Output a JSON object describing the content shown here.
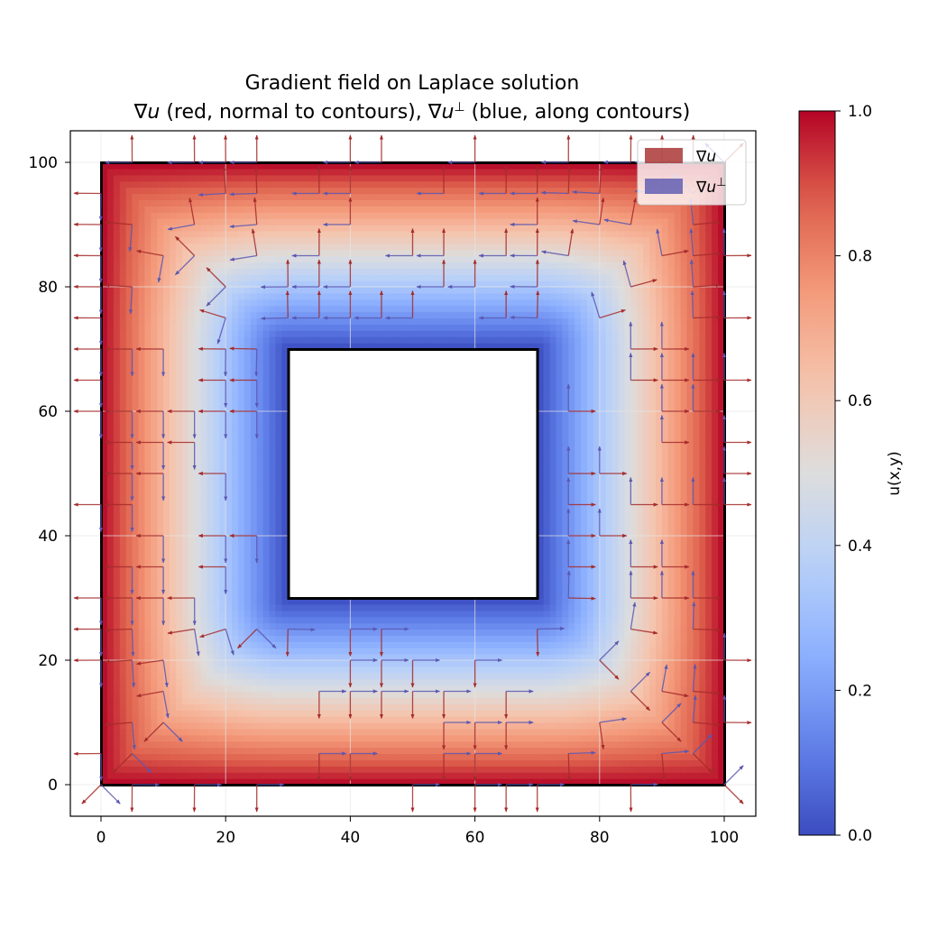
{
  "chart_data": {
    "type": "quiver",
    "title_line1": "Gradient field on Laplace solution",
    "title_line2": "∇u (red, normal to contours), ∇u⊥ (blue, along contours)",
    "xlim": [
      -5,
      105
    ],
    "ylim": [
      -5,
      105
    ],
    "x_ticks": [
      0,
      20,
      40,
      60,
      80,
      100
    ],
    "y_ticks": [
      0,
      20,
      40,
      60,
      80,
      100
    ],
    "grid": true,
    "domain": {
      "outer_square": [
        [
          0,
          0
        ],
        [
          100,
          100
        ]
      ],
      "inner_hole": [
        [
          30,
          30
        ],
        [
          70,
          70
        ]
      ],
      "boundary_values": {
        "outer": 1.0,
        "inner": 0.0
      }
    },
    "field": "u(x,y) = 1 on outer boundary, 0 on inner boundary (Laplace)",
    "series": [
      {
        "name": "∇u",
        "color": "#a52a2a",
        "direction": "normal to contours, increasing u"
      },
      {
        "name": "∇u⊥",
        "color": "#5a57b0",
        "direction": "along contours"
      }
    ],
    "legend_placement": "top-right",
    "colorbar": {
      "label": "u(x,y)",
      "range": [
        0.0,
        1.0
      ],
      "ticks": [
        "0.0",
        "0.2",
        "0.4",
        "0.6",
        "0.8",
        "1.0"
      ],
      "colormap": "coolwarm"
    }
  },
  "title": {
    "line1": "Gradient field on Laplace solution",
    "line2_a": "∇",
    "line2_b": "u",
    "line2_c": " (red, normal to contours), ∇",
    "line2_d": "u",
    "line2_e": "⊥",
    "line2_f": " (blue, along contours)"
  },
  "legend": {
    "grad_prefix": "∇",
    "grad_var": "u",
    "perp_prefix": "∇",
    "perp_var": "u",
    "perp_sup": "⊥"
  },
  "axes": {
    "x_tick_labels": [
      "0",
      "20",
      "40",
      "60",
      "80",
      "100"
    ],
    "y_tick_labels": [
      "0",
      "20",
      "40",
      "60",
      "80",
      "100"
    ]
  },
  "colorbar": {
    "label": "u(x,y)",
    "tick_labels": [
      "0.0",
      "0.2",
      "0.4",
      "0.6",
      "0.8",
      "1.0"
    ]
  },
  "colors": {
    "grad": "#a52a2a",
    "perp": "#5a57b0",
    "outline": "#000000",
    "grid": "#e6e6e6"
  }
}
